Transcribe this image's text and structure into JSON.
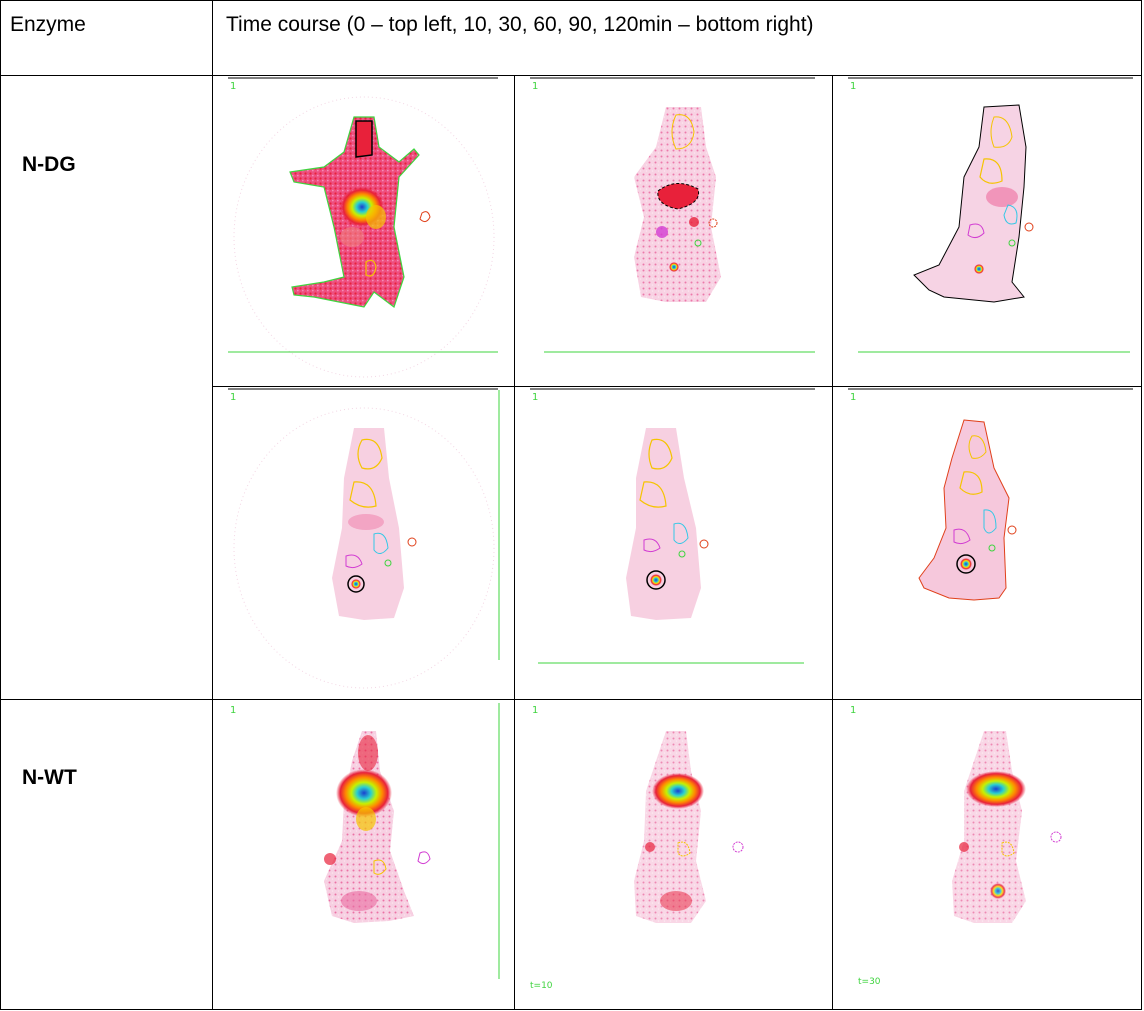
{
  "table": {
    "header": {
      "col1": "Enzyme",
      "col2": "Time course (0 – top left, 10, 30, 60, 90, 120min – bottom right)"
    },
    "rows": [
      {
        "label": "N-DG",
        "panels": [
          {
            "frame_label": "1",
            "time_label": ""
          },
          {
            "frame_label": "1",
            "time_label": ""
          },
          {
            "frame_label": "1",
            "time_label": ""
          },
          {
            "frame_label": "1",
            "time_label": ""
          },
          {
            "frame_label": "1",
            "time_label": ""
          },
          {
            "frame_label": "1",
            "time_label": ""
          }
        ]
      },
      {
        "label": "N-WT",
        "panels": [
          {
            "frame_label": "1",
            "time_label": ""
          },
          {
            "frame_label": "1",
            "time_label": "t=10"
          },
          {
            "frame_label": "1",
            "time_label": "t=30"
          }
        ]
      }
    ]
  },
  "colors": {
    "roi_green": "#3fd43f",
    "roi_yellow": "#f5c400",
    "roi_red": "#e0401a",
    "roi_cyan": "#33c8e6",
    "roi_magenta": "#d23cd2",
    "hot_red": "#e8213a",
    "pink": "#f6bfd8"
  },
  "icons": [
    "scan-image-icon"
  ]
}
